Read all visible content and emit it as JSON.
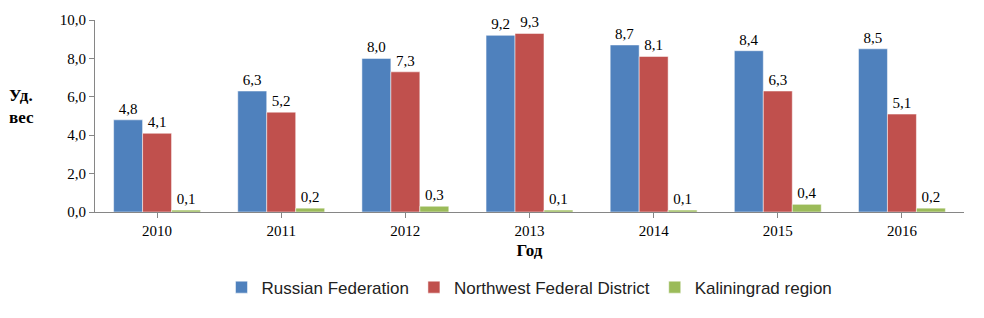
{
  "chart_data": {
    "type": "bar",
    "x_label": "Год",
    "y_label": "Уд. вес",
    "categories": [
      "2010",
      "2011",
      "2012",
      "2013",
      "2014",
      "2015",
      "2016"
    ],
    "series": [
      {
        "name": "Russian Federation",
        "color": "#4F81BD",
        "values": [
          4.8,
          6.3,
          8.0,
          9.2,
          8.7,
          8.4,
          8.5
        ],
        "value_labels": [
          "4,8",
          "6,3",
          "8,0",
          "9,2",
          "8,7",
          "8,4",
          "8,5"
        ]
      },
      {
        "name": "Northwest Federal District",
        "color": "#C0504D",
        "values": [
          4.1,
          5.2,
          7.3,
          9.3,
          8.1,
          6.3,
          5.1
        ],
        "value_labels": [
          "4,1",
          "5,2",
          "7,3",
          "9,3",
          "8,1",
          "6,3",
          "5,1"
        ]
      },
      {
        "name": "Kaliningrad region",
        "color": "#9BBB59",
        "values": [
          0.1,
          0.2,
          0.3,
          0.1,
          0.1,
          0.4,
          0.2
        ],
        "value_labels": [
          "0,1",
          "0,2",
          "0,3",
          "0,1",
          "0,1",
          "0,4",
          "0,2"
        ]
      }
    ],
    "ylim": [
      0,
      10
    ],
    "yticks": [
      {
        "value": 0,
        "label": "0,0"
      },
      {
        "value": 2,
        "label": "2,0"
      },
      {
        "value": 4,
        "label": "4,0"
      },
      {
        "value": 6,
        "label": "6,0"
      },
      {
        "value": 8,
        "label": "8,0"
      },
      {
        "value": 10,
        "label": "10,0"
      }
    ],
    "grid": false,
    "legend": "bottom",
    "data_labels": true
  }
}
